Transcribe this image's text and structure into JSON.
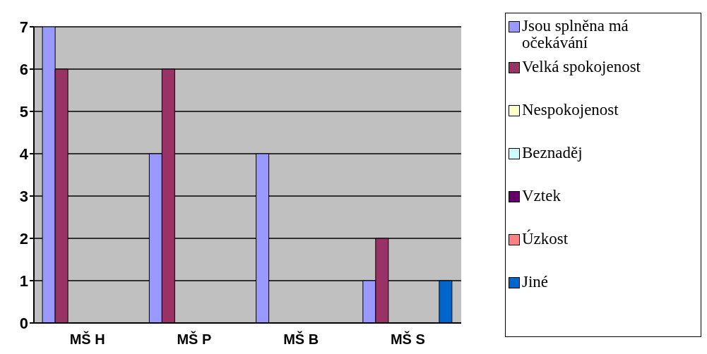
{
  "chart_data": {
    "type": "bar",
    "categories": [
      "MŠ H",
      "MŠ P",
      "MŠ B",
      "MŠ S"
    ],
    "series": [
      {
        "name": "Jsou splněna má očekávání",
        "color": "#9999ff",
        "values": [
          7,
          4,
          4,
          1
        ]
      },
      {
        "name": "Velká spokojenost",
        "color": "#993366",
        "values": [
          6,
          6,
          0,
          2
        ]
      },
      {
        "name": "Nespokojenost",
        "color": "#ffffcc",
        "values": [
          0,
          0,
          0,
          0
        ]
      },
      {
        "name": "Beznaděj",
        "color": "#ccffff",
        "values": [
          0,
          0,
          0,
          0
        ]
      },
      {
        "name": "Vztek",
        "color": "#660066",
        "values": [
          0,
          0,
          0,
          0
        ]
      },
      {
        "name": "Úzkost",
        "color": "#ff8080",
        "values": [
          0,
          0,
          0,
          0
        ]
      },
      {
        "name": "Jiné",
        "color": "#0066cc",
        "values": [
          0,
          0,
          0,
          1
        ]
      }
    ],
    "ylim": [
      0,
      7
    ],
    "yticks": [
      0,
      1,
      2,
      3,
      4,
      5,
      6,
      7
    ],
    "grid": "y",
    "legend": "right"
  }
}
